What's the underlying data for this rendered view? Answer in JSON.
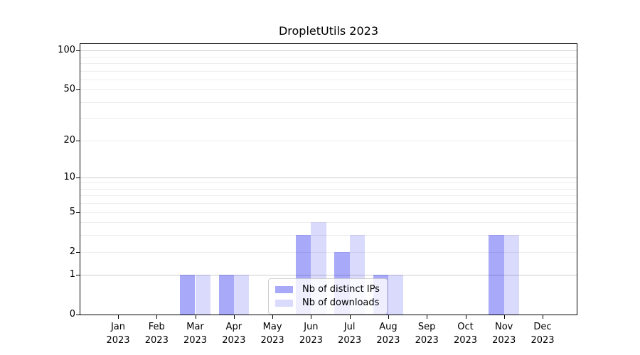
{
  "title": "DropletUtils 2023",
  "chart_data": {
    "type": "bar",
    "title": "DropletUtils 2023",
    "categories": [
      "Jan",
      "Feb",
      "Mar",
      "Apr",
      "May",
      "Jun",
      "Jul",
      "Aug",
      "Sep",
      "Oct",
      "Nov",
      "Dec"
    ],
    "category_year": "2023",
    "series": [
      {
        "name": "Nb of distinct IPs",
        "color": "rgba(10,10,240,0.35)",
        "values": [
          0,
          0,
          1,
          1,
          0,
          3,
          2,
          1,
          0,
          0,
          3,
          0
        ]
      },
      {
        "name": "Nb of downloads",
        "color": "rgba(10,10,240,0.15)",
        "values": [
          0,
          0,
          1,
          1,
          0,
          4,
          3,
          1,
          0,
          0,
          3,
          0
        ]
      }
    ],
    "xlabel": "",
    "ylabel": "",
    "yscale": "log1p",
    "yticks": [
      0,
      1,
      2,
      5,
      10,
      20,
      50,
      100
    ],
    "grid_decades": [
      1,
      10,
      100
    ],
    "grid_minor": [
      2,
      3,
      4,
      5,
      6,
      7,
      8,
      9,
      20,
      30,
      40,
      50,
      60,
      70,
      80,
      90
    ],
    "ylim": [
      0,
      112
    ],
    "grid": "on",
    "legend_position": "lower center"
  },
  "colors": {
    "grid_minor": "#ededed",
    "grid_major": "#cccccc",
    "axis": "#000000",
    "background": "#ffffff",
    "bar_distinct_ips": "rgba(10,10,240,0.35)",
    "bar_downloads": "rgba(10,10,240,0.15)"
  }
}
